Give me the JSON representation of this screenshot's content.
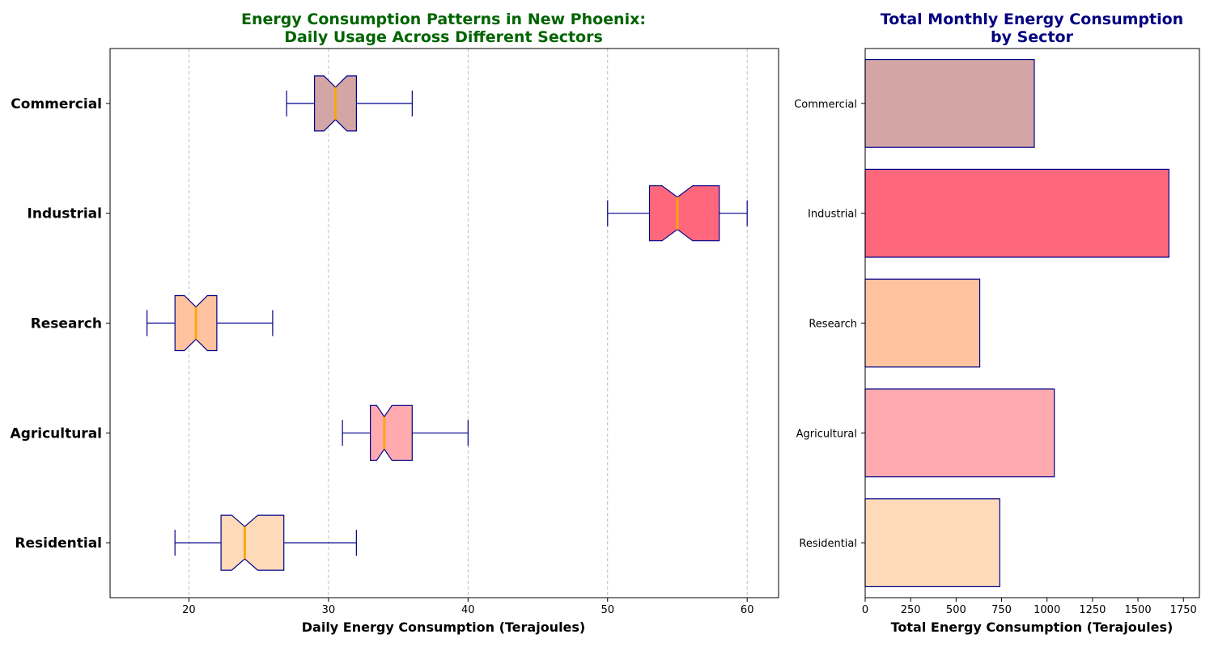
{
  "chart_data": [
    {
      "type": "boxplot",
      "orientation": "horizontal",
      "notched": true,
      "title_line1": "Energy Consumption Patterns in New Phoenix:",
      "title_line2": "Daily Usage Across Different Sectors",
      "title_color": "#006400",
      "xlabel": "Daily Energy Consumption (Terajoules)",
      "ylabel": "",
      "xlim": [
        14.35,
        62.25
      ],
      "x_ticks": [
        20,
        30,
        40,
        50,
        60
      ],
      "grid": "x-dashed",
      "edge_color": "#00008B",
      "median_color": "#FFA500",
      "categories": [
        "Residential",
        "Agricultural",
        "Research",
        "Industrial",
        "Commercial"
      ],
      "boxes": [
        {
          "name": "Residential",
          "whisker_low": 19,
          "q1": 22.3,
          "median": 24,
          "q3": 26.8,
          "whisker_high": 32,
          "color": "#FFDAB9"
        },
        {
          "name": "Agricultural",
          "whisker_low": 31,
          "q1": 33,
          "median": 34,
          "q3": 36,
          "whisker_high": 40,
          "color": "#FFAAAF"
        },
        {
          "name": "Research",
          "whisker_low": 17,
          "q1": 19,
          "median": 20.5,
          "q3": 22,
          "whisker_high": 26,
          "color": "#FFC39F"
        },
        {
          "name": "Industrial",
          "whisker_low": 50,
          "q1": 53,
          "median": 55,
          "q3": 58,
          "whisker_high": 60,
          "color": "#FF687C"
        },
        {
          "name": "Commercial",
          "whisker_low": 27,
          "q1": 29,
          "median": 30.5,
          "q3": 32,
          "whisker_high": 36,
          "color": "#D4A5A5"
        }
      ]
    },
    {
      "type": "bar",
      "orientation": "horizontal",
      "title_line1": "Total Monthly Energy Consumption",
      "title_line2": "by Sector",
      "title_color": "#000080",
      "xlabel": "Total Energy Consumption (Terajoules)",
      "ylabel": "",
      "xlim": [
        0,
        1838
      ],
      "x_ticks": [
        0,
        250,
        500,
        750,
        1000,
        1250,
        1500,
        1750
      ],
      "grid": "off",
      "edge_color": "#00008B",
      "categories": [
        "Residential",
        "Agricultural",
        "Research",
        "Industrial",
        "Commercial"
      ],
      "values": [
        740,
        1040,
        630,
        1670,
        930
      ],
      "colors": [
        "#FFDAB9",
        "#FFAAAF",
        "#FFC39F",
        "#FF687C",
        "#D4A5A5"
      ]
    }
  ]
}
